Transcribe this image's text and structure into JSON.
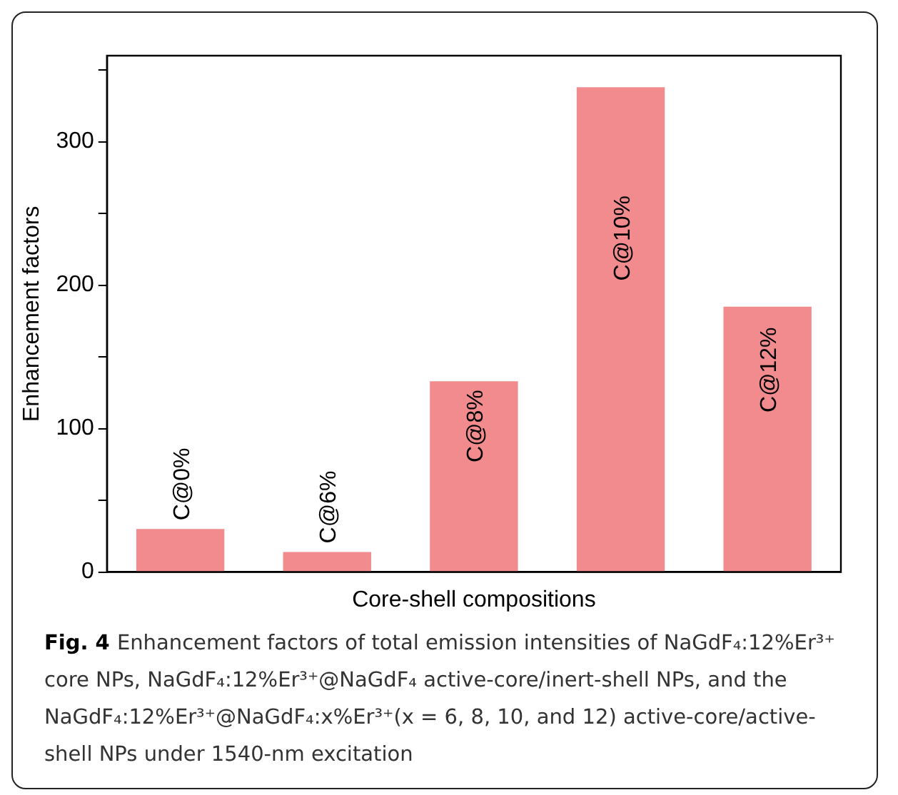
{
  "chart_data": {
    "type": "bar",
    "xlabel": "Core-shell compositions",
    "ylabel": "Enhancement factors",
    "categories": [
      "C@0%",
      "C@6%",
      "C@8%",
      "C@10%",
      "C@12%"
    ],
    "values": [
      30,
      14,
      133,
      338,
      185
    ],
    "color": "#f28b8d",
    "ylim": [
      0,
      360
    ],
    "yticks": [
      0,
      {
        "value": 50,
        "label": null
      },
      100,
      {
        "value": 150,
        "label": null
      },
      200,
      {
        "value": 250,
        "label": null
      },
      300,
      {
        "value": 350,
        "label": null
      }
    ],
    "tick_labels": "y",
    "grid": false,
    "legend": false,
    "annotations": [
      "Fig. 4",
      "Enhancement factors of total emission intensities of NaGdF₄:12%Er³⁺ core NPs, NaGdF₄:12%Er³⁺@NaGdF₄ active-core/inert-shell NPs, and the NaGdF₄:12%Er³⁺@NaGdF₄:x%Er³⁺(x = 6, 8, 10, and 12) active-core/active-shell NPs under 1540-nm excitation"
    ]
  }
}
